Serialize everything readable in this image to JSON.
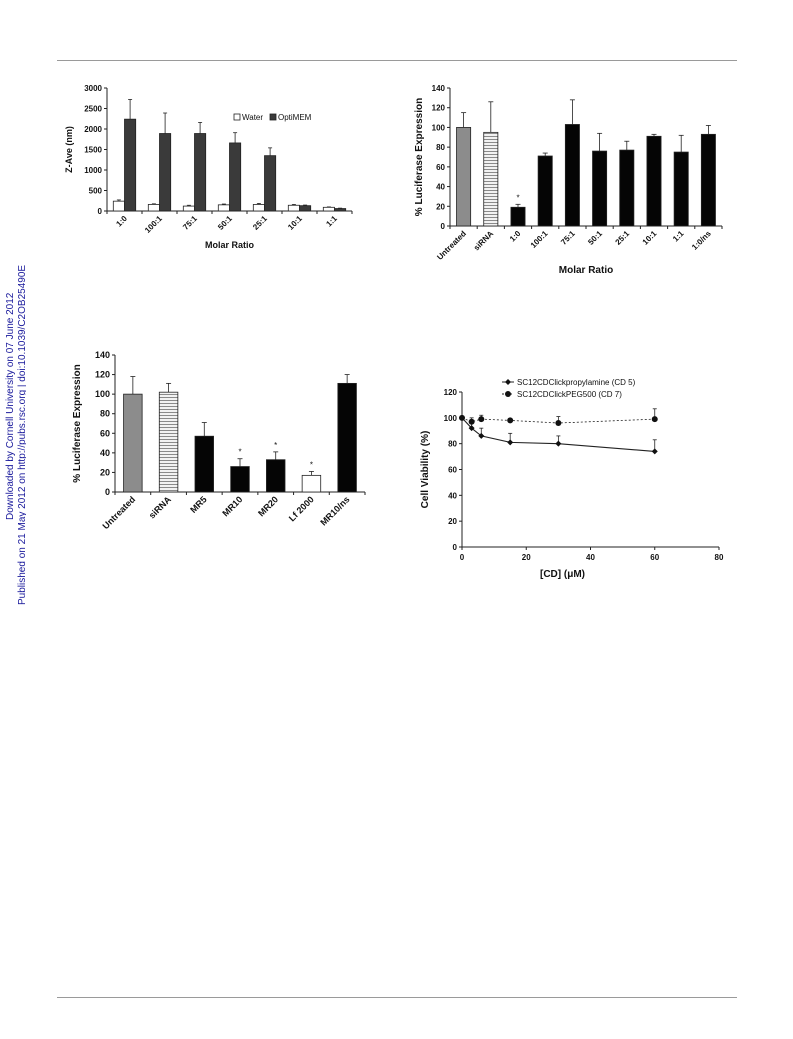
{
  "sidebar": {
    "line1": "Downloaded by Cornell University on 07 June 2012",
    "line2": "Published on 21 May 2012 on http://pubs.rsc.org | doi:10.1039/C2OB25490E",
    "color": "#1a1a9c"
  },
  "chart_data": [
    {
      "type": "bar",
      "title": "",
      "xlabel": "Molar Ratio",
      "ylabel": "Z-Ave (nm)",
      "ylim": [
        0,
        3000
      ],
      "yticks": [
        0,
        500,
        1000,
        1500,
        2000,
        2500,
        3000
      ],
      "categories": [
        "1:0",
        "100:1",
        "75:1",
        "50:1",
        "25:1",
        "10:1",
        "1:1"
      ],
      "legend_position": "top-right",
      "series": [
        {
          "name": "Water",
          "color": "#ffffff",
          "values": [
            240,
            160,
            120,
            150,
            160,
            140,
            90
          ],
          "errors": [
            30,
            15,
            20,
            20,
            25,
            20,
            10
          ]
        },
        {
          "name": "OptiMEM",
          "color": "#3a3a3a",
          "values": [
            2240,
            1890,
            1890,
            1660,
            1350,
            130,
            60
          ],
          "errors": [
            480,
            500,
            270,
            250,
            190,
            15,
            10
          ]
        }
      ]
    },
    {
      "type": "bar",
      "title": "",
      "xlabel": "Molar Ratio",
      "ylabel": "% Luciferase Expression",
      "ylim": [
        0,
        140
      ],
      "yticks": [
        0,
        20,
        40,
        60,
        80,
        100,
        120,
        140
      ],
      "categories": [
        "Untreated",
        "siRNA",
        "1:0",
        "100:1",
        "75:1",
        "50:1",
        "25:1",
        "10:1",
        "1:1",
        "1:0/ns"
      ],
      "values": [
        100,
        95,
        19,
        71,
        103,
        76,
        77,
        91,
        75,
        93
      ],
      "errors": [
        15,
        31,
        3,
        3,
        25,
        18,
        9,
        2,
        17,
        9
      ],
      "fills": [
        "gray",
        "striped",
        "black",
        "black",
        "black",
        "black",
        "black",
        "black",
        "black",
        "black"
      ],
      "asterisks": [
        "",
        "",
        "*",
        "",
        "",
        "",
        "",
        "",
        "",
        ""
      ]
    },
    {
      "type": "bar",
      "title": "",
      "xlabel": "",
      "ylabel": "% Luciferase Expression",
      "ylim": [
        0,
        140
      ],
      "yticks": [
        0,
        20,
        40,
        60,
        80,
        100,
        120,
        140
      ],
      "categories": [
        "Untreated",
        "siRNA",
        "MR5",
        "MR10",
        "MR20",
        "Lf 2000",
        "MR10/ns"
      ],
      "values": [
        100,
        102,
        57,
        26,
        33,
        17,
        111
      ],
      "errors": [
        18,
        9,
        14,
        8,
        8,
        4,
        9
      ],
      "fills": [
        "gray",
        "striped",
        "black",
        "black",
        "black",
        "white",
        "black"
      ],
      "asterisks": [
        "",
        "",
        "",
        "*",
        "*",
        "*",
        ""
      ]
    },
    {
      "type": "line",
      "title": "",
      "xlabel": "[CD] (μM)",
      "ylabel": "Cell Viability (%)",
      "xlim": [
        0,
        80
      ],
      "ylim": [
        0,
        120
      ],
      "xticks": [
        0,
        20,
        40,
        60,
        80
      ],
      "yticks": [
        0,
        20,
        40,
        60,
        80,
        100,
        120
      ],
      "legend_position": "top",
      "series": [
        {
          "name": "SC12CDClickpropylamine (CD 5)",
          "marker": "diamond",
          "dash": "solid",
          "x": [
            0,
            3,
            6,
            15,
            30,
            60
          ],
          "y": [
            100,
            92,
            86,
            81,
            80,
            74
          ],
          "errors": [
            0,
            4,
            6,
            7,
            6,
            9
          ]
        },
        {
          "name": "SC12CDClickPEG500 (CD 7)",
          "marker": "circle",
          "dash": "dashed",
          "x": [
            0,
            3,
            6,
            15,
            30,
            60
          ],
          "y": [
            100,
            97,
            99,
            98,
            96,
            99
          ],
          "errors": [
            0,
            3,
            3,
            0,
            5,
            8
          ]
        }
      ]
    }
  ]
}
